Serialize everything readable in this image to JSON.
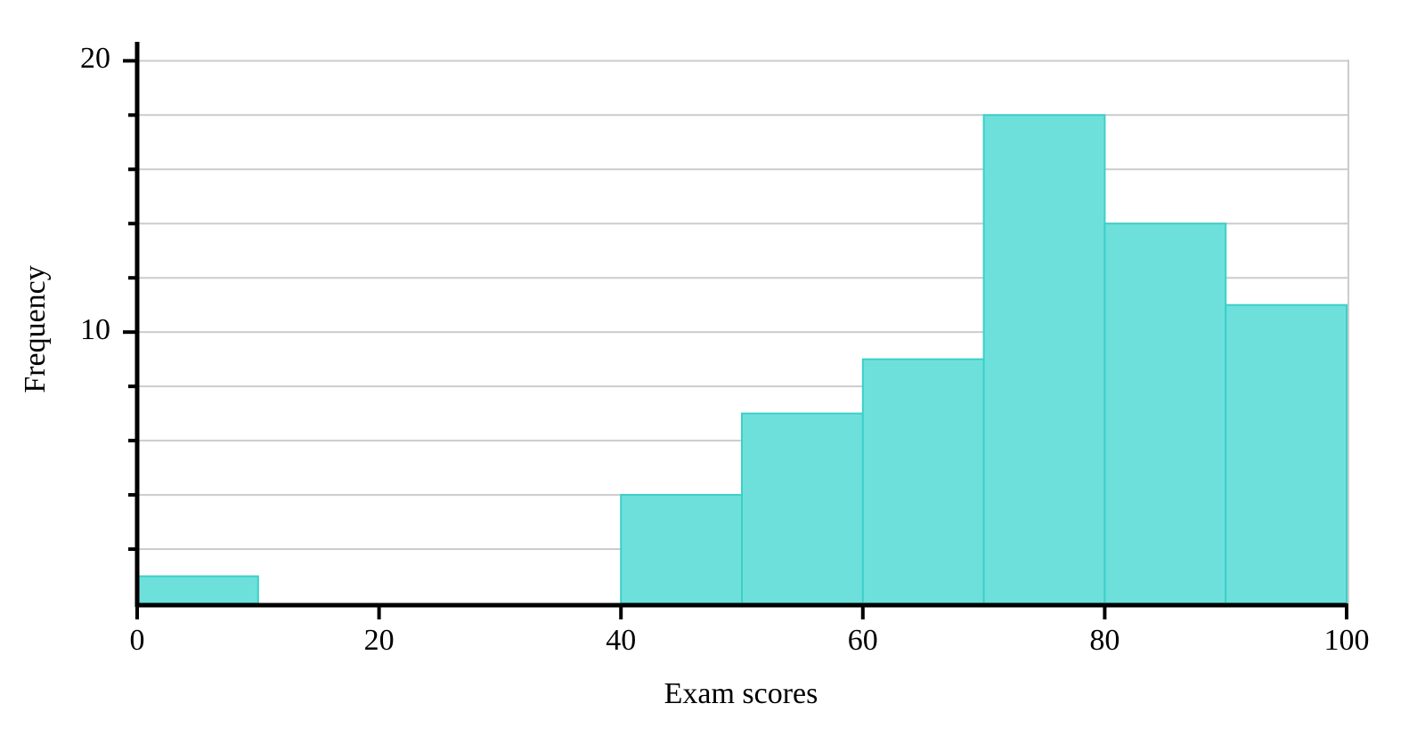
{
  "chart_data": {
    "type": "histogram",
    "xlabel": "Exam scores",
    "ylabel": "Frequency",
    "bins": [
      0,
      10,
      20,
      30,
      40,
      50,
      60,
      70,
      80,
      90,
      100
    ],
    "values": [
      1,
      0,
      0,
      0,
      4,
      7,
      9,
      18,
      14,
      11
    ],
    "color": "#6ee0dc",
    "edgecolor": "#3ccfc9",
    "xlim": [
      0,
      100
    ],
    "xticks": [
      0,
      20,
      40,
      60,
      80,
      100
    ],
    "ylim": [
      0,
      20.7
    ],
    "yticks": [
      10,
      20
    ],
    "yminorticks": [
      2,
      4,
      6,
      8,
      12,
      14,
      16,
      18
    ],
    "grid": true
  }
}
